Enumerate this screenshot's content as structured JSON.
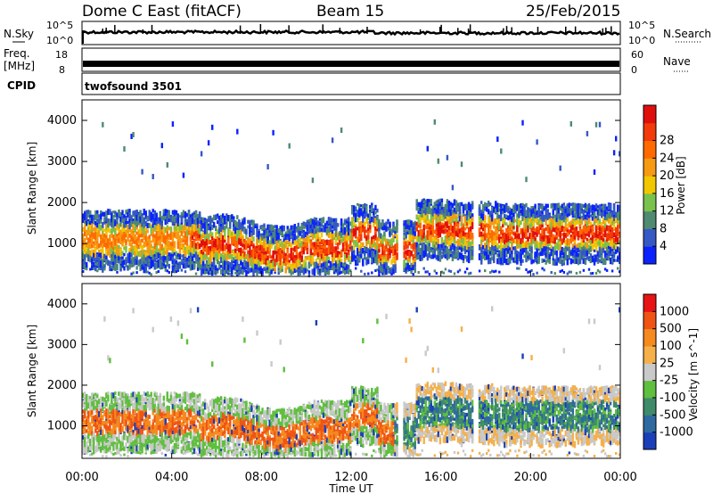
{
  "header": {
    "station": "Dome C East (fitACF)",
    "beam": "Beam 15",
    "date": "25/Feb/2015"
  },
  "top_panels": {
    "nsky_label": "N.Sky",
    "nsky_ticks": [
      "10^5",
      "10^0"
    ],
    "nsearch_label": "N.Search",
    "nsearch_ticks": [
      "10^5",
      "10^0"
    ],
    "freq_label_line1": "Freq.",
    "freq_label_line2": "[MHz]",
    "freq_ticks": [
      "18",
      "8"
    ],
    "nave_label": "Nave",
    "nave_ticks": [
      "60",
      "0"
    ],
    "cpid_label": "CPID",
    "cpid_value": "twofsound 3501"
  },
  "x_axis": {
    "label": "Time UT",
    "ticks": [
      "00:00",
      "04:00",
      "08:00",
      "12:00",
      "16:00",
      "20:00",
      "00:00"
    ]
  },
  "chart_data": [
    {
      "type": "heatmap",
      "panel": "power",
      "x": "time UT 00:00-24:00",
      "ylabel": "Slant Range [km]",
      "y_ticks": [
        "1000",
        "2000",
        "3000",
        "4000"
      ],
      "ylim": [
        200,
        4500
      ],
      "colorbar_label": "Power [dB]",
      "colorbar_ticks": [
        "4",
        "8",
        "12",
        "16",
        "20",
        "24",
        "28"
      ],
      "colorbar_colors": [
        "#0b22ff",
        "#3559c4",
        "#4f8a71",
        "#79c24d",
        "#f2c600",
        "#f59a12",
        "#ff6a00",
        "#f23a0a",
        "#e10e0e"
      ],
      "grid": false
    },
    {
      "type": "heatmap",
      "panel": "velocity",
      "x": "time UT 00:00-24:00",
      "ylabel": "Slant Range [km]",
      "y_ticks": [
        "1000",
        "2000",
        "3000",
        "4000"
      ],
      "ylim": [
        200,
        4500
      ],
      "colorbar_label": "Velocity [m s^-1]",
      "colorbar_ticks": [
        "1000",
        "500",
        "100",
        "25",
        "-25",
        "-100",
        "-500",
        "-1000"
      ],
      "colorbar_colors": [
        "#1a3fb8",
        "#2e6aa0",
        "#3f8a6a",
        "#5fbf3e",
        "#c9c9c9",
        "#f5b04a",
        "#f58a1f",
        "#f05414",
        "#e81414"
      ],
      "grid": false
    }
  ]
}
